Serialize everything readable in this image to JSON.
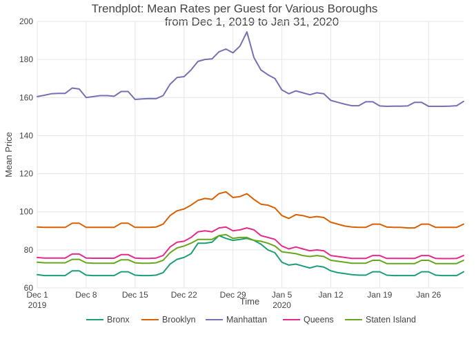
{
  "chart_data": {
    "type": "line",
    "title": "Trendplot: Mean Rates per Guest for Various Boroughs",
    "subtitle": "from Dec 1, 2019 to Jan 31, 2020",
    "xlabel": "Time",
    "ylabel": "Mean Price",
    "xlim": [
      "2019-12-01",
      "2020-01-31"
    ],
    "ylim": [
      60,
      200
    ],
    "yticks": [
      60,
      80,
      100,
      120,
      140,
      160,
      180,
      200
    ],
    "xticks": [
      {
        "date": "2019-12-01",
        "label": "Dec 1",
        "sublabel": "2019"
      },
      {
        "date": "2019-12-08",
        "label": "Dec 8",
        "sublabel": ""
      },
      {
        "date": "2019-12-15",
        "label": "Dec 15",
        "sublabel": ""
      },
      {
        "date": "2019-12-22",
        "label": "Dec 22",
        "sublabel": ""
      },
      {
        "date": "2019-12-29",
        "label": "Dec 29",
        "sublabel": ""
      },
      {
        "date": "2020-01-05",
        "label": "Jan 5",
        "sublabel": "2020"
      },
      {
        "date": "2020-01-12",
        "label": "Jan 12",
        "sublabel": ""
      },
      {
        "date": "2020-01-19",
        "label": "Jan 19",
        "sublabel": ""
      },
      {
        "date": "2020-01-26",
        "label": "Jan 26",
        "sublabel": ""
      }
    ],
    "grid": true,
    "legend_position": "bottom",
    "x": [
      "2019-12-01",
      "2019-12-02",
      "2019-12-03",
      "2019-12-04",
      "2019-12-05",
      "2019-12-06",
      "2019-12-07",
      "2019-12-08",
      "2019-12-09",
      "2019-12-10",
      "2019-12-11",
      "2019-12-12",
      "2019-12-13",
      "2019-12-14",
      "2019-12-15",
      "2019-12-16",
      "2019-12-17",
      "2019-12-18",
      "2019-12-19",
      "2019-12-20",
      "2019-12-21",
      "2019-12-22",
      "2019-12-23",
      "2019-12-24",
      "2019-12-25",
      "2019-12-26",
      "2019-12-27",
      "2019-12-28",
      "2019-12-29",
      "2019-12-30",
      "2019-12-31",
      "2020-01-01",
      "2020-01-02",
      "2020-01-03",
      "2020-01-04",
      "2020-01-05",
      "2020-01-06",
      "2020-01-07",
      "2020-01-08",
      "2020-01-09",
      "2020-01-10",
      "2020-01-11",
      "2020-01-12",
      "2020-01-13",
      "2020-01-14",
      "2020-01-15",
      "2020-01-16",
      "2020-01-17",
      "2020-01-18",
      "2020-01-19",
      "2020-01-20",
      "2020-01-21",
      "2020-01-22",
      "2020-01-23",
      "2020-01-24",
      "2020-01-25",
      "2020-01-26",
      "2020-01-27",
      "2020-01-28",
      "2020-01-29",
      "2020-01-30",
      "2020-01-31"
    ],
    "series": [
      {
        "name": "Bronx",
        "color": "#1b9e77",
        "values": [
          67,
          66.5,
          66.5,
          66.5,
          66.5,
          69,
          69,
          66.7,
          66.5,
          66.5,
          66.5,
          66.5,
          68.5,
          68.5,
          66.7,
          66.5,
          66.5,
          66.7,
          68,
          72.5,
          75,
          76,
          78,
          83.5,
          83.5,
          84,
          87.5,
          86,
          85,
          85.5,
          86,
          85,
          83,
          80,
          78.5,
          73.5,
          72,
          72.5,
          71.5,
          70.5,
          71.5,
          71,
          69,
          68,
          67.5,
          67,
          66.7,
          66.7,
          68.5,
          68.5,
          66.7,
          66.5,
          66.5,
          66.5,
          66.5,
          68.5,
          68.5,
          66.7,
          66.5,
          66.5,
          66.5,
          68.5
        ]
      },
      {
        "name": "Brooklyn",
        "color": "#d95f02",
        "values": [
          92,
          91.8,
          91.8,
          91.8,
          91.8,
          94,
          94,
          91.8,
          91.8,
          91.8,
          91.8,
          91.8,
          94,
          94,
          91.8,
          91.8,
          91.8,
          92,
          93.5,
          98,
          100.5,
          101.5,
          103.5,
          106,
          107,
          106.5,
          109.5,
          110.5,
          107.5,
          108,
          109.5,
          106.5,
          104,
          103.5,
          102,
          98,
          96.5,
          98.5,
          98,
          97,
          97.5,
          97,
          94.5,
          93.5,
          92.5,
          92,
          91.8,
          91.8,
          93.5,
          93.5,
          92,
          91.8,
          91.8,
          91.5,
          91.5,
          93.5,
          93.5,
          91.8,
          91.8,
          91.8,
          91.8,
          93.5
        ]
      },
      {
        "name": "Manhattan",
        "color": "#7570b3",
        "values": [
          160.5,
          161.2,
          162,
          162.2,
          162.2,
          165,
          164.5,
          160,
          160.5,
          161,
          161,
          160.7,
          163.2,
          163.2,
          159,
          159.3,
          159.5,
          159.4,
          161,
          167,
          170.5,
          171,
          174.5,
          179,
          180,
          180.3,
          184,
          185.5,
          183.5,
          187,
          194.5,
          181,
          174.5,
          172,
          170,
          164,
          162,
          163.5,
          162.5,
          161.5,
          162.5,
          162,
          158.5,
          157.5,
          156.5,
          155.7,
          155.7,
          157.8,
          157.8,
          155.6,
          155.4,
          155.5,
          155.5,
          155.6,
          157.5,
          157.5,
          155.4,
          155.4,
          155.4,
          155.5,
          155.7,
          158
        ]
      },
      {
        "name": "Queens",
        "color": "#e7298a",
        "values": [
          76,
          75.7,
          75.7,
          75.7,
          75.7,
          77.8,
          77.8,
          75.7,
          75.6,
          75.6,
          75.6,
          75.6,
          77.5,
          77.5,
          75.7,
          75.5,
          75.5,
          75.7,
          77,
          81.5,
          84,
          84.5,
          86.5,
          89.5,
          90,
          89.5,
          91.5,
          92,
          90,
          90.5,
          91.5,
          90.5,
          87.5,
          86.5,
          85.5,
          82,
          80.5,
          81.5,
          80.5,
          79.5,
          80,
          79.5,
          77,
          76.5,
          76,
          75.5,
          75.5,
          75.5,
          77,
          77,
          75.5,
          75.5,
          75.5,
          75.5,
          75.5,
          77,
          77,
          75.5,
          75.4,
          75.4,
          75.5,
          77
        ]
      },
      {
        "name": "Staten Island",
        "color": "#66a61e",
        "values": [
          73.5,
          73.2,
          73.2,
          73.2,
          73.2,
          75,
          75,
          73.2,
          73,
          73,
          73,
          73,
          74.8,
          74.8,
          73.2,
          73,
          73,
          73.2,
          74.5,
          78.5,
          81,
          82,
          83.5,
          85.5,
          85.5,
          85.5,
          87.5,
          88,
          86,
          86.5,
          86.5,
          85,
          84.5,
          83.5,
          82,
          79,
          78.5,
          78,
          77,
          76.5,
          77,
          76.5,
          74.5,
          74,
          73.5,
          73,
          73,
          73,
          74.5,
          74.5,
          72.8,
          72.8,
          72.8,
          72.8,
          72.8,
          74.5,
          74.5,
          72.8,
          72.8,
          72.8,
          72.8,
          74.5
        ]
      }
    ]
  }
}
